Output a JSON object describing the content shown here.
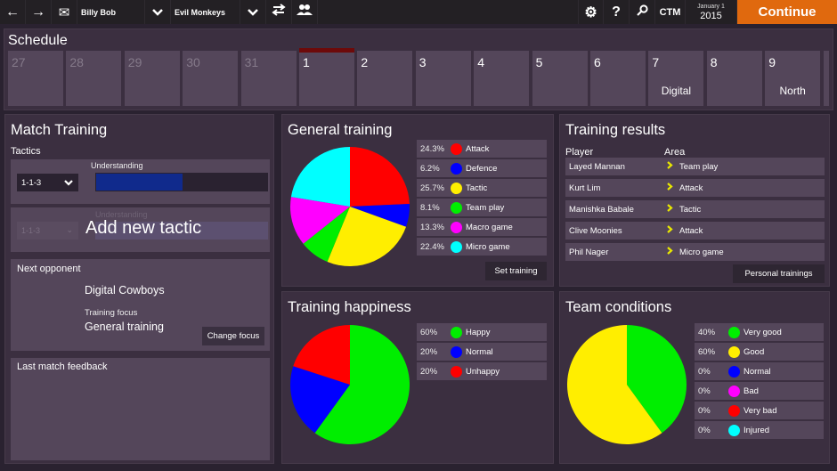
{
  "topbar": {
    "back_icon": "←",
    "forward_icon": "→",
    "mail_icon": "✉",
    "manager_name": "Billy Bob",
    "manager_chevron": "⌄",
    "team_name": "Evil Monkeys",
    "team_chevron": "⌄",
    "swap_icon": "⇆",
    "group_icon": "👥",
    "settings_icon": "⚙",
    "help_icon": "?",
    "search_icon": "⚲",
    "ctm_label": "CTM",
    "date_month_day": "January 1",
    "date_year": "2015",
    "continue_label": "Continue",
    "continue_color": "#e0690e"
  },
  "schedule": {
    "title": "Schedule",
    "days": [
      {
        "num": "27",
        "past": true,
        "event": ""
      },
      {
        "num": "28",
        "past": true,
        "event": ""
      },
      {
        "num": "29",
        "past": true,
        "event": ""
      },
      {
        "num": "30",
        "past": true,
        "event": ""
      },
      {
        "num": "31",
        "past": true,
        "event": ""
      },
      {
        "num": "1",
        "past": false,
        "current": true,
        "event": ""
      },
      {
        "num": "2",
        "past": false,
        "event": ""
      },
      {
        "num": "3",
        "past": false,
        "event": ""
      },
      {
        "num": "4",
        "past": false,
        "event": ""
      },
      {
        "num": "5",
        "past": false,
        "event": ""
      },
      {
        "num": "6",
        "past": false,
        "event": ""
      },
      {
        "num": "7",
        "past": false,
        "event": "Digital"
      },
      {
        "num": "8",
        "past": false,
        "event": ""
      },
      {
        "num": "9",
        "past": false,
        "event": "North"
      }
    ]
  },
  "match_training": {
    "title": "Match Training",
    "tactics_label": "Tactics",
    "tactic_select_value": "1-1-3",
    "understanding_label": "Understanding",
    "understanding_pct": 50,
    "understanding_color": "#102a8c",
    "ghost_select_value": "1-1-3",
    "ghost_understanding_label": "Understanding",
    "add_new_tactic_label": "Add new tactic",
    "next_opponent_label": "Next opponent",
    "opponent_name": "Digital Cowboys",
    "training_focus_label": "Training focus",
    "training_focus_value": "General training",
    "change_focus_label": "Change focus",
    "last_match_feedback_label": "Last match feedback"
  },
  "general_training": {
    "title": "General training",
    "items": [
      {
        "pct": "24.3%",
        "label": "Attack",
        "color": "#ff0000"
      },
      {
        "pct": "6.2%",
        "label": "Defence",
        "color": "#0000ff"
      },
      {
        "pct": "25.7%",
        "label": "Tactic",
        "color": "#ffee00"
      },
      {
        "pct": "8.1%",
        "label": "Team play",
        "color": "#00ee00"
      },
      {
        "pct": "13.3%",
        "label": "Macro game",
        "color": "#ff00ff"
      },
      {
        "pct": "22.4%",
        "label": "Micro game",
        "color": "#00ffff"
      }
    ],
    "set_training_label": "Set training"
  },
  "training_results": {
    "title": "Training results",
    "col_player": "Player",
    "col_area": "Area",
    "rows": [
      {
        "player": "Layed Mannan",
        "area": "Team play"
      },
      {
        "player": "Kurt Lim",
        "area": "Attack"
      },
      {
        "player": "Manishka Babale",
        "area": "Tactic"
      },
      {
        "player": "Clive Moonies",
        "area": "Attack"
      },
      {
        "player": "Phil Nager",
        "area": "Micro game"
      }
    ],
    "chevron": "›",
    "personal_trainings_label": "Personal trainings"
  },
  "training_happiness": {
    "title": "Training happiness",
    "items": [
      {
        "pct": "60%",
        "label": "Happy",
        "color": "#00ee00"
      },
      {
        "pct": "20%",
        "label": "Normal",
        "color": "#0000ff"
      },
      {
        "pct": "20%",
        "label": "Unhappy",
        "color": "#ff0000"
      }
    ]
  },
  "team_conditions": {
    "title": "Team conditions",
    "items": [
      {
        "pct": "40%",
        "label": "Very good",
        "color": "#00ee00"
      },
      {
        "pct": "60%",
        "label": "Good",
        "color": "#ffee00"
      },
      {
        "pct": "0%",
        "label": "Normal",
        "color": "#0000ff"
      },
      {
        "pct": "0%",
        "label": "Bad",
        "color": "#ff00ff"
      },
      {
        "pct": "0%",
        "label": "Very bad",
        "color": "#ff0000"
      },
      {
        "pct": "0%",
        "label": "Injured",
        "color": "#00ffff"
      }
    ]
  },
  "chart_data": [
    {
      "type": "pie",
      "title": "General training",
      "categories": [
        "Attack",
        "Defence",
        "Tactic",
        "Team play",
        "Macro game",
        "Micro game"
      ],
      "values": [
        24.3,
        6.2,
        25.7,
        8.1,
        13.3,
        22.4
      ],
      "colors": [
        "#ff0000",
        "#0000ff",
        "#ffee00",
        "#00ee00",
        "#ff00ff",
        "#00ffff"
      ],
      "legend_position": "right"
    },
    {
      "type": "pie",
      "title": "Training happiness",
      "categories": [
        "Happy",
        "Normal",
        "Unhappy"
      ],
      "values": [
        60,
        20,
        20
      ],
      "colors": [
        "#00ee00",
        "#0000ff",
        "#ff0000"
      ],
      "legend_position": "right"
    },
    {
      "type": "pie",
      "title": "Team conditions",
      "categories": [
        "Very good",
        "Good",
        "Normal",
        "Bad",
        "Very bad",
        "Injured"
      ],
      "values": [
        40,
        60,
        0,
        0,
        0,
        0
      ],
      "colors": [
        "#00ee00",
        "#ffee00",
        "#0000ff",
        "#ff00ff",
        "#ff0000",
        "#00ffff"
      ],
      "legend_position": "right"
    }
  ]
}
